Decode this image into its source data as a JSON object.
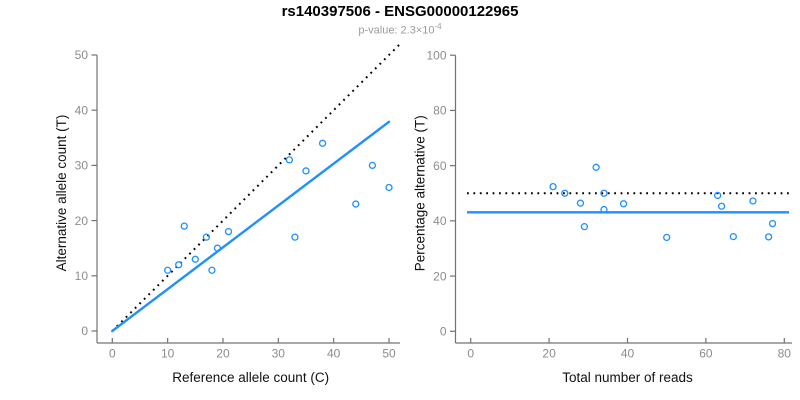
{
  "header": {
    "title": "rs140397506 - ENSG00000122965",
    "subtitle_prefix": "p-value: 2.3",
    "subtitle_times": "×10",
    "subtitle_exponent": "-4"
  },
  "colors": {
    "accent_blue": "#1E90FF",
    "identity_line": "#000000",
    "axis": "#737373",
    "tick_label": "#8c8c8c",
    "axis_title": "#111111",
    "subtitle": "#9b9b9b"
  },
  "chart_data": [
    {
      "type": "scatter",
      "name": "allele-counts",
      "xlabel": "Reference allele count (C)",
      "ylabel": "Alternative allele count (T)",
      "xlim": [
        0,
        50
      ],
      "ylim": [
        0,
        50
      ],
      "xticks": [
        0,
        10,
        20,
        30,
        40,
        50
      ],
      "yticks": [
        0,
        10,
        20,
        30,
        40,
        50
      ],
      "grid": false,
      "legend": "none",
      "points": [
        [
          10,
          11
        ],
        [
          12,
          12
        ],
        [
          13,
          19
        ],
        [
          15,
          13
        ],
        [
          17,
          17
        ],
        [
          18,
          11
        ],
        [
          19,
          15
        ],
        [
          21,
          18
        ],
        [
          32,
          31
        ],
        [
          33,
          17
        ],
        [
          35,
          29
        ],
        [
          38,
          34
        ],
        [
          44,
          23
        ],
        [
          47,
          30
        ],
        [
          50,
          26
        ]
      ],
      "identity_line": {
        "style": "dotted",
        "color": "#000000",
        "from": [
          0,
          0
        ],
        "to": [
          50,
          50
        ]
      },
      "fit_line": {
        "style": "solid",
        "color": "#1E90FF",
        "from": [
          0,
          0
        ],
        "to": [
          50,
          37.9
        ],
        "slope": 0.757
      }
    },
    {
      "type": "scatter",
      "name": "percentage-vs-reads",
      "xlabel": "Total number of reads",
      "ylabel": "Percentage alternative (T)",
      "xlim": [
        0,
        80
      ],
      "ylim": [
        0,
        100
      ],
      "xticks": [
        0,
        20,
        40,
        60,
        80
      ],
      "yticks": [
        0,
        20,
        40,
        60,
        80,
        100
      ],
      "grid": false,
      "legend": "none",
      "points": [
        [
          21,
          52.4
        ],
        [
          24,
          50
        ],
        [
          28,
          46.4
        ],
        [
          29,
          37.9
        ],
        [
          32,
          59.4
        ],
        [
          34,
          50
        ],
        [
          34,
          44.1
        ],
        [
          39,
          46.2
        ],
        [
          50,
          34
        ],
        [
          63,
          49.2
        ],
        [
          64,
          45.3
        ],
        [
          67,
          34.3
        ],
        [
          72,
          47.2
        ],
        [
          76,
          34.2
        ],
        [
          77,
          39
        ]
      ],
      "reference_hline": {
        "style": "dotted",
        "color": "#000000",
        "y": 50
      },
      "fit_hline": {
        "style": "solid",
        "color": "#1E90FF",
        "y": 43.1
      }
    }
  ]
}
